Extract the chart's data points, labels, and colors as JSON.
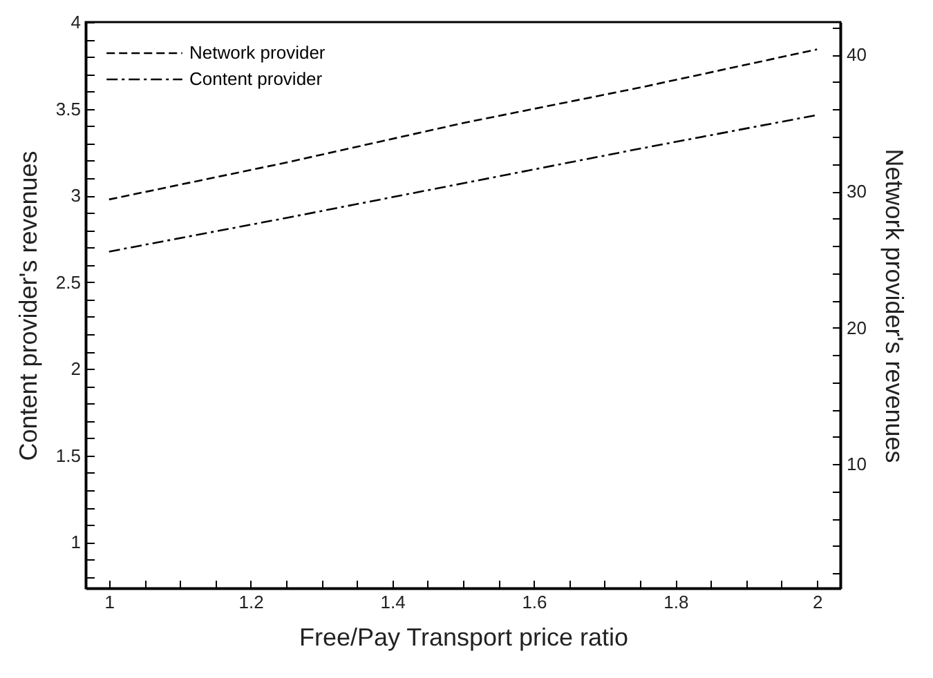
{
  "chart_data": {
    "type": "line",
    "xlabel": "Free/Pay Transport price ratio",
    "ylabel": "Content provider's revenues",
    "y2label": "Network provider's revenues",
    "x": [
      1,
      1.25,
      1.5,
      1.75,
      2
    ],
    "series": [
      {
        "name": "Network provider",
        "color": "#000000",
        "axis": "y2",
        "line_style": "dashed",
        "values": [
          29.4,
          32.1,
          35,
          37.6,
          40.4
        ]
      },
      {
        "name": "Content provider",
        "color": "#000000",
        "axis": "y",
        "line_style": "dashdot",
        "values": [
          2.676,
          2.87,
          3.07,
          3.27,
          3.464
        ]
      }
    ],
    "xlim": [
      0.967,
      2.033
    ],
    "xticks": [
      1,
      {
        "value": 1.05,
        "label": null
      },
      {
        "value": 1.1,
        "label": null
      },
      {
        "value": 1.15,
        "label": null
      },
      1.2,
      {
        "value": 1.25,
        "label": null
      },
      {
        "value": 1.3,
        "label": null
      },
      {
        "value": 1.35,
        "label": null
      },
      1.4,
      {
        "value": 1.45,
        "label": null
      },
      {
        "value": 1.5,
        "label": null
      },
      {
        "value": 1.55,
        "label": null
      },
      1.6,
      {
        "value": 1.65,
        "label": null
      },
      {
        "value": 1.7,
        "label": null
      },
      {
        "value": 1.75,
        "label": null
      },
      1.8,
      {
        "value": 1.85,
        "label": null
      },
      {
        "value": 1.9,
        "label": null
      },
      {
        "value": 1.95,
        "label": null
      },
      2
    ],
    "ylim": [
      0.734,
      4
    ],
    "yticks": [
      {
        "value": 0.8,
        "label": null
      },
      {
        "value": 0.9,
        "label": null
      },
      1,
      {
        "value": 1.1,
        "label": null
      },
      {
        "value": 1.2,
        "label": null
      },
      {
        "value": 1.3,
        "label": null
      },
      {
        "value": 1.4,
        "label": null
      },
      1.5,
      {
        "value": 1.6,
        "label": null
      },
      {
        "value": 1.7,
        "label": null
      },
      {
        "value": 1.8,
        "label": null
      },
      {
        "value": 1.9,
        "label": null
      },
      2,
      {
        "value": 2.1,
        "label": null
      },
      {
        "value": 2.2,
        "label": null
      },
      {
        "value": 2.3,
        "label": null
      },
      {
        "value": 2.4,
        "label": null
      },
      2.5,
      {
        "value": 2.6,
        "label": null
      },
      {
        "value": 2.7,
        "label": null
      },
      {
        "value": 2.8,
        "label": null
      },
      {
        "value": 2.9,
        "label": null
      },
      3,
      {
        "value": 3.1,
        "label": null
      },
      {
        "value": 3.2,
        "label": null
      },
      {
        "value": 3.3,
        "label": null
      },
      {
        "value": 3.4,
        "label": null
      },
      3.5,
      {
        "value": 3.6,
        "label": null
      },
      {
        "value": 3.7,
        "label": null
      },
      {
        "value": 3.8,
        "label": null
      },
      {
        "value": 3.9,
        "label": null
      },
      4
    ],
    "y2lim": [
      0.9,
      42.4
    ],
    "y2ticks": [
      {
        "value": 2,
        "label": null
      },
      {
        "value": 4,
        "label": null
      },
      {
        "value": 6,
        "label": null
      },
      {
        "value": 8,
        "label": null
      },
      10,
      {
        "value": 12,
        "label": null
      },
      {
        "value": 14,
        "label": null
      },
      {
        "value": 16,
        "label": null
      },
      {
        "value": 18,
        "label": null
      },
      20,
      {
        "value": 22,
        "label": null
      },
      {
        "value": 24,
        "label": null
      },
      {
        "value": 26,
        "label": null
      },
      {
        "value": 28,
        "label": null
      },
      30,
      {
        "value": 32,
        "label": null
      },
      {
        "value": 34,
        "label": null
      },
      {
        "value": 36,
        "label": null
      },
      {
        "value": 38,
        "label": null
      },
      40,
      {
        "value": 42,
        "label": null
      }
    ],
    "grid": false,
    "legend": "top left"
  }
}
